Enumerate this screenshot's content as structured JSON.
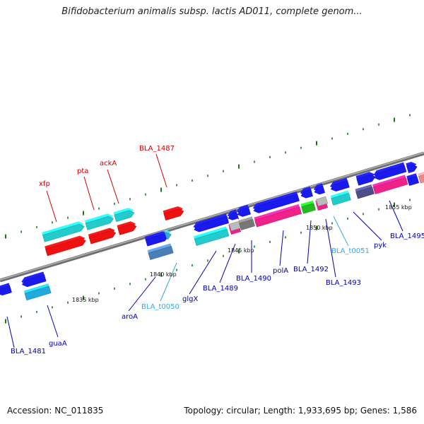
{
  "title": "Bifidobacterium animalis subsp. lactis AD011, complete genom...",
  "footer": {
    "accession": "Accession: NC_011835",
    "topology": "Topology: circular; Length: 1,933,695 bp; Genes: 1,586"
  },
  "colors": {
    "backbone": "#8a8a8a",
    "tick": "#1a7a1a",
    "label_gene": "#0000aa",
    "label_highlight": "#cc0000",
    "label_rna": "#33aadd",
    "kbp_label": "#111111"
  },
  "scale_labels": [
    "1835 kbp",
    "1840 kbp",
    "1845 kbp",
    "1850 kbp",
    "1855 kbp"
  ],
  "gene_labels": [
    {
      "text": "xfp",
      "kind": "highlight"
    },
    {
      "text": "pta",
      "kind": "highlight"
    },
    {
      "text": "ackA",
      "kind": "highlight"
    },
    {
      "text": "BLA_1487",
      "kind": "highlight"
    },
    {
      "text": "BLA_1481",
      "kind": "gene"
    },
    {
      "text": "guaA",
      "kind": "gene"
    },
    {
      "text": "aroA",
      "kind": "gene"
    },
    {
      "text": "BLA_t0050",
      "kind": "rna"
    },
    {
      "text": "glgX",
      "kind": "gene"
    },
    {
      "text": "BLA_1489",
      "kind": "gene"
    },
    {
      "text": "BLA_1490",
      "kind": "gene"
    },
    {
      "text": "polA",
      "kind": "gene"
    },
    {
      "text": "BLA_1492",
      "kind": "gene"
    },
    {
      "text": "BLA_1493",
      "kind": "gene"
    },
    {
      "text": "BLA_t0051",
      "kind": "rna"
    },
    {
      "text": "pyk",
      "kind": "gene"
    },
    {
      "text": "BLA_1495",
      "kind": "gene"
    }
  ]
}
